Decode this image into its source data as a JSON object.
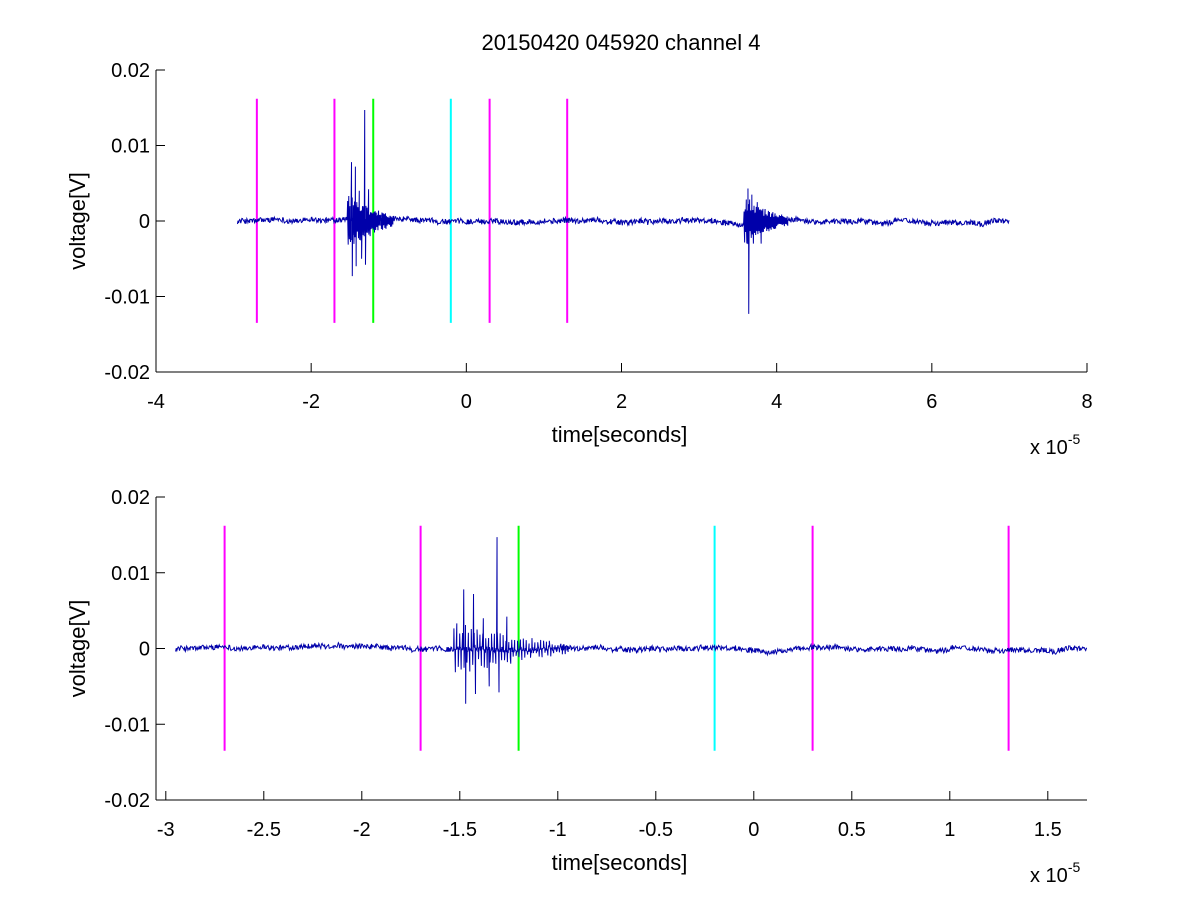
{
  "figure": {
    "title": "20150420 045920 channel 4"
  },
  "chart_data": [
    {
      "type": "line",
      "xlabel": "time[seconds]",
      "ylabel": "voltage[V]",
      "x_multiplier_base": "x 10",
      "x_multiplier_exp": "-5",
      "xlim": [
        -4e-05,
        8e-05
      ],
      "ylim": [
        -0.02,
        0.02
      ],
      "xticks": [
        -4e-05,
        -2e-05,
        0,
        2e-05,
        4e-05,
        6e-05,
        8e-05
      ],
      "xtick_labels": [
        "-4",
        "-2",
        "0",
        "2",
        "4",
        "6",
        "8"
      ],
      "yticks": [
        -0.02,
        -0.01,
        0,
        0.01,
        0.02
      ],
      "ytick_labels": [
        "-0.02",
        "-0.01",
        "0",
        "0.01",
        "0.02"
      ],
      "markers": [
        {
          "x": -2.7e-05,
          "y_range": [
            -0.0135,
            0.0162
          ],
          "color": "#ff00ff"
        },
        {
          "x": -1.7e-05,
          "y_range": [
            -0.0135,
            0.0162
          ],
          "color": "#ff00ff"
        },
        {
          "x": -1.2e-05,
          "y_range": [
            -0.0135,
            0.0162
          ],
          "color": "#00ff00"
        },
        {
          "x": -2e-06,
          "y_range": [
            -0.0135,
            0.0162
          ],
          "color": "#00ffff"
        },
        {
          "x": 3e-06,
          "y_range": [
            -0.0135,
            0.0162
          ],
          "color": "#ff00ff"
        },
        {
          "x": 1.3e-05,
          "y_range": [
            -0.0135,
            0.0162
          ],
          "color": "#ff00ff"
        }
      ],
      "series": [
        {
          "color": "#0000aa",
          "x_range": [
            -2.95e-05,
            7e-05
          ],
          "noise_amplitude": 0.0005,
          "bursts": [
            {
              "x": -1.48e-05,
              "y": 0.0078
            },
            {
              "x": -1.47e-05,
              "y": -0.0073
            },
            {
              "x": -1.43e-05,
              "y": 0.0072
            },
            {
              "x": -1.42e-05,
              "y": -0.006
            },
            {
              "x": -1.38e-05,
              "y": 0.004
            },
            {
              "x": -1.35e-05,
              "y": -0.005
            },
            {
              "x": -1.31e-05,
              "y": 0.0147
            },
            {
              "x": -1.3e-05,
              "y": -0.0058
            },
            {
              "x": -1.26e-05,
              "y": 0.0042
            },
            {
              "x": -1.24e-05,
              "y": -0.002
            },
            {
              "x": 3.63e-05,
              "y": 0.0043
            },
            {
              "x": 3.64e-05,
              "y": -0.0123
            },
            {
              "x": 3.68e-05,
              "y": 0.0035
            },
            {
              "x": 3.7e-05,
              "y": -0.003
            },
            {
              "x": 3.75e-05,
              "y": 0.0025
            },
            {
              "x": 3.8e-05,
              "y": -0.003
            },
            {
              "x": 3.85e-05,
              "y": 0.0015
            }
          ]
        }
      ]
    },
    {
      "type": "line",
      "xlabel": "time[seconds]",
      "ylabel": "voltage[V]",
      "x_multiplier_base": "x 10",
      "x_multiplier_exp": "-5",
      "xlim": [
        -3.05e-05,
        1.7e-05
      ],
      "ylim": [
        -0.02,
        0.02
      ],
      "xticks": [
        -3e-05,
        -2.5e-05,
        -2e-05,
        -1.5e-05,
        -1e-05,
        -5e-06,
        0,
        5e-06,
        1e-05,
        1.5e-05
      ],
      "xtick_labels": [
        "-3",
        "-2.5",
        "-2",
        "-1.5",
        "-1",
        "-0.5",
        "0",
        "0.5",
        "1",
        "1.5"
      ],
      "yticks": [
        -0.02,
        -0.01,
        0,
        0.01,
        0.02
      ],
      "ytick_labels": [
        "-0.02",
        "-0.01",
        "0",
        "0.01",
        "0.02"
      ],
      "markers": [
        {
          "x": -2.7e-05,
          "y_range": [
            -0.0135,
            0.0162
          ],
          "color": "#ff00ff"
        },
        {
          "x": -1.7e-05,
          "y_range": [
            -0.0135,
            0.0162
          ],
          "color": "#ff00ff"
        },
        {
          "x": -1.2e-05,
          "y_range": [
            -0.0135,
            0.0162
          ],
          "color": "#00ff00"
        },
        {
          "x": -2e-06,
          "y_range": [
            -0.0135,
            0.0162
          ],
          "color": "#00ffff"
        },
        {
          "x": 3e-06,
          "y_range": [
            -0.0135,
            0.0162
          ],
          "color": "#ff00ff"
        },
        {
          "x": 1.3e-05,
          "y_range": [
            -0.0135,
            0.0162
          ],
          "color": "#ff00ff"
        }
      ],
      "series": [
        {
          "color": "#0000aa",
          "x_range": [
            -2.95e-05,
            1.7e-05
          ],
          "noise_amplitude": 0.0005,
          "bursts": [
            {
              "x": -1.48e-05,
              "y": 0.0078
            },
            {
              "x": -1.47e-05,
              "y": -0.0073
            },
            {
              "x": -1.43e-05,
              "y": 0.0072
            },
            {
              "x": -1.42e-05,
              "y": -0.006
            },
            {
              "x": -1.38e-05,
              "y": 0.004
            },
            {
              "x": -1.35e-05,
              "y": -0.005
            },
            {
              "x": -1.31e-05,
              "y": 0.0147
            },
            {
              "x": -1.3e-05,
              "y": -0.0058
            },
            {
              "x": -1.26e-05,
              "y": 0.0042
            },
            {
              "x": -1.24e-05,
              "y": -0.002
            }
          ]
        }
      ]
    }
  ]
}
